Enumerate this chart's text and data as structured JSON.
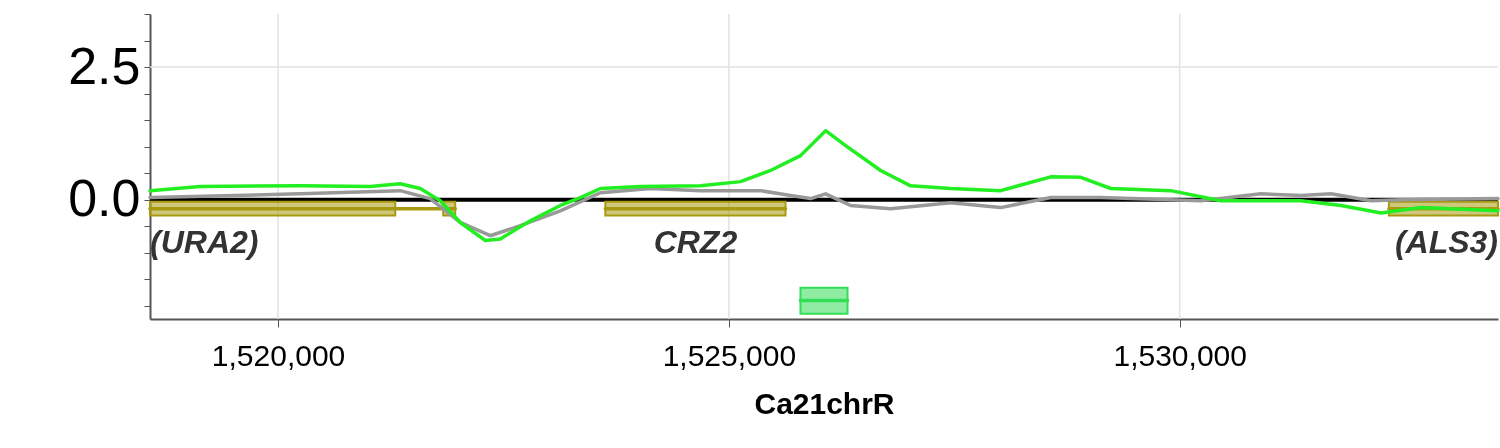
{
  "chart_data": {
    "type": "line",
    "xlabel": "Ca21chrR",
    "xlim": [
      1518580,
      1533530
    ],
    "ylim": [
      -2.25,
      3.5
    ],
    "xticks": [
      {
        "value": 1520000,
        "label": "1,520,000"
      },
      {
        "value": 1525000,
        "label": "1,525,000"
      },
      {
        "value": 1530000,
        "label": "1,530,000"
      }
    ],
    "yticks": [
      {
        "value": -2,
        "label": null
      },
      {
        "value": -1.5,
        "label": null
      },
      {
        "value": -1,
        "label": null
      },
      {
        "value": -0.5,
        "label": null
      },
      {
        "value": 0,
        "label": "0.0"
      },
      {
        "value": 0.5,
        "label": null
      },
      {
        "value": 1,
        "label": null
      },
      {
        "value": 1.5,
        "label": null
      },
      {
        "value": 2,
        "label": null
      },
      {
        "value": 2.5,
        "label": "2.5"
      },
      {
        "value": 3,
        "label": null
      },
      {
        "value": 3.5,
        "label": null
      }
    ],
    "grid": true,
    "ref_lines": [
      {
        "axis": "y",
        "value": 0,
        "label": null,
        "color": "#000000"
      }
    ],
    "series": [
      {
        "name": "(URA2)",
        "color": "#a89a10",
        "x": [
          1518580,
          1521300,
          1521300,
          1521832,
          1521832,
          1521965
        ],
        "values": [
          -0.17,
          -0.17,
          -0.17,
          -0.17,
          -0.17,
          -0.17
        ],
        "lower": [
          -0.3,
          -0.3,
          null,
          null,
          -0.3,
          -0.3
        ],
        "upper": [
          -0.04,
          -0.04,
          null,
          null,
          -0.04,
          -0.04
        ]
      },
      {
        "name": "CRZ2",
        "color": "#a89a10",
        "x": [
          1523630,
          1525628
        ],
        "values": [
          -0.17,
          -0.17
        ],
        "lower": [
          -0.3,
          -0.3
        ],
        "upper": [
          -0.04,
          -0.04
        ]
      },
      {
        "name": "(ALS3)",
        "color": "#a89a10",
        "x": [
          1532320,
          1533530
        ],
        "values": [
          -0.17,
          -0.17
        ],
        "lower": [
          -0.3,
          -0.3
        ],
        "upper": [
          -0.04,
          -0.04
        ]
      },
      {
        "color": "#33dd55",
        "x": [
          1525794,
          1526316
        ],
        "values": [
          -1.9,
          -1.9
        ],
        "lower": [
          -2.15,
          -2.15
        ],
        "upper": [
          -1.66,
          -1.66
        ]
      },
      {
        "color": "#999999",
        "x": [
          1518580,
          1520245,
          1521355,
          1521688,
          1522021,
          1522354,
          1522687,
          1523131,
          1523575,
          1524130,
          1524685,
          1525351,
          1525684,
          1525906,
          1526073,
          1526350,
          1526794,
          1527460,
          1528015,
          1528570,
          1529125,
          1530235,
          1530901,
          1531345,
          1531678,
          1532122,
          1532455,
          1533530
        ],
        "values": [
          0.04,
          0.11,
          0.17,
          0.02,
          -0.43,
          -0.68,
          -0.49,
          -0.21,
          0.13,
          0.21,
          0.17,
          0.17,
          0.08,
          0.02,
          0.11,
          -0.11,
          -0.17,
          -0.06,
          -0.15,
          0.04,
          0.04,
          -0.02,
          0.11,
          0.08,
          0.11,
          -0.02,
          0.0,
          0.02
        ]
      },
      {
        "color": "#22ee22",
        "x": [
          1518580,
          1519135,
          1520245,
          1521022,
          1521355,
          1521577,
          1521799,
          1522021,
          1522299,
          1522465,
          1522798,
          1523131,
          1523353,
          1523575,
          1524019,
          1524685,
          1525129,
          1525462,
          1525795,
          1526073,
          1526295,
          1526683,
          1527016,
          1527460,
          1528015,
          1528570,
          1528903,
          1529236,
          1529902,
          1530457,
          1531345,
          1531789,
          1532233,
          1532677,
          1533530
        ],
        "values": [
          0.17,
          0.25,
          0.26,
          0.25,
          0.3,
          0.21,
          -0.02,
          -0.43,
          -0.77,
          -0.74,
          -0.4,
          -0.11,
          0.04,
          0.21,
          0.25,
          0.26,
          0.34,
          0.55,
          0.83,
          1.3,
          1.02,
          0.55,
          0.26,
          0.21,
          0.17,
          0.43,
          0.42,
          0.21,
          0.17,
          -0.02,
          -0.02,
          -0.11,
          -0.25,
          -0.15,
          -0.21
        ]
      }
    ]
  }
}
